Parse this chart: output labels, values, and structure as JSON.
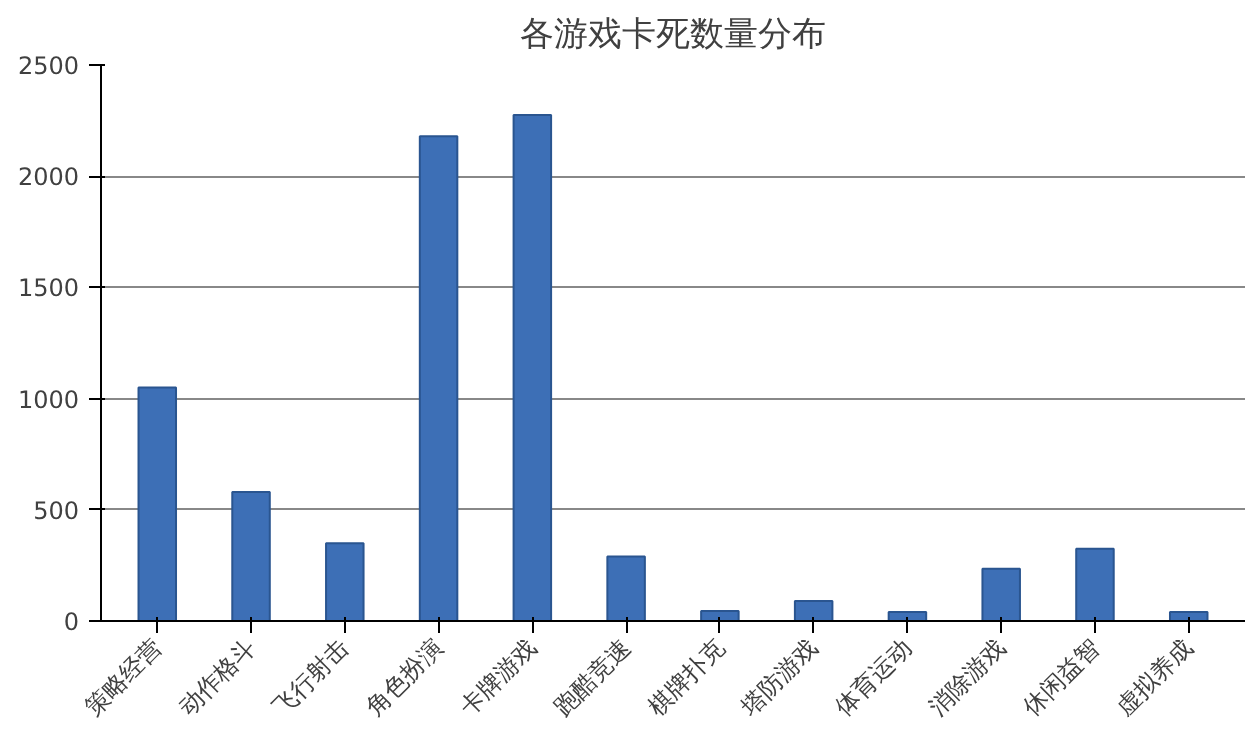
{
  "chart_data": {
    "type": "bar",
    "title": "各游戏卡死数量分布",
    "categories": [
      "策略经营",
      "动作格斗",
      "飞行射击",
      "角色扮演",
      "卡牌游戏",
      "跑酷竞速",
      "棋牌扑克",
      "塔防游戏",
      "体育运动",
      "消除游戏",
      "休闲益智",
      "虚拟养成"
    ],
    "values": [
      1050,
      580,
      350,
      2180,
      2275,
      290,
      45,
      90,
      40,
      235,
      325,
      40
    ],
    "color": "#3d6fb6",
    "ylim": [
      0,
      2500
    ],
    "yticks": [
      0,
      500,
      1000,
      1500,
      2000,
      2500
    ],
    "grid": "y"
  }
}
